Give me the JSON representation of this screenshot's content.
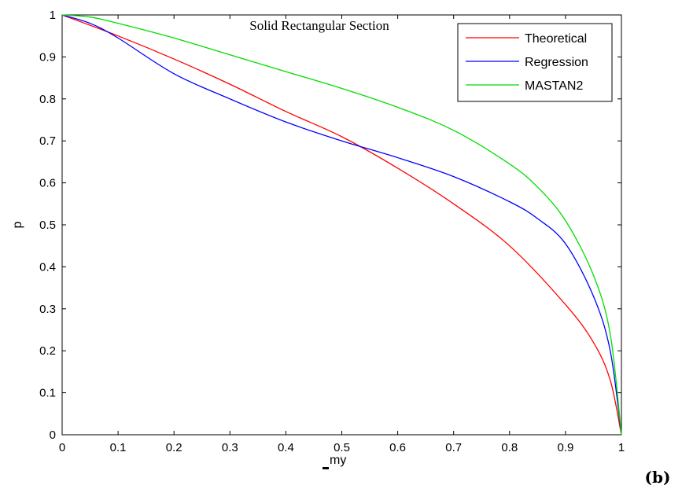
{
  "chart_data": {
    "type": "line",
    "title": "Solid Rectangular Section",
    "xlabel": "my",
    "ylabel": "p",
    "panel_label": "(b)",
    "xlim": [
      0,
      1
    ],
    "ylim": [
      0,
      1
    ],
    "xticks": [
      "0",
      "0.1",
      "0.2",
      "0.3",
      "0.4",
      "0.5",
      "0.6",
      "0.7",
      "0.8",
      "0.9",
      "1"
    ],
    "yticks": [
      "0",
      "0.1",
      "0.2",
      "0.3",
      "0.4",
      "0.5",
      "0.6",
      "0.7",
      "0.8",
      "0.9",
      "1"
    ],
    "grid": false,
    "legend_position": "top-right",
    "series": [
      {
        "name": "Theoretical",
        "color": "#ff0000",
        "x": [
          0,
          0.1,
          0.2,
          0.3,
          0.4,
          0.5,
          0.6,
          0.7,
          0.8,
          0.9,
          0.95,
          0.98,
          1.0
        ],
        "y": [
          1.0,
          0.95,
          0.895,
          0.835,
          0.77,
          0.71,
          0.635,
          0.55,
          0.45,
          0.31,
          0.22,
          0.13,
          0.0
        ]
      },
      {
        "name": "Regression",
        "color": "#0000ff",
        "x": [
          0,
          0.05,
          0.1,
          0.2,
          0.3,
          0.4,
          0.5,
          0.6,
          0.7,
          0.8,
          0.85,
          0.9,
          0.95,
          0.98,
          1.0
        ],
        "y": [
          1.0,
          0.98,
          0.945,
          0.86,
          0.8,
          0.745,
          0.7,
          0.66,
          0.615,
          0.555,
          0.515,
          0.455,
          0.33,
          0.2,
          0.0
        ]
      },
      {
        "name": "MASTAN2",
        "color": "#00dd00",
        "x": [
          0,
          0.05,
          0.1,
          0.2,
          0.3,
          0.4,
          0.5,
          0.6,
          0.7,
          0.8,
          0.85,
          0.9,
          0.95,
          0.98,
          1.0
        ],
        "y": [
          1.0,
          0.995,
          0.98,
          0.945,
          0.905,
          0.865,
          0.825,
          0.78,
          0.725,
          0.645,
          0.59,
          0.51,
          0.38,
          0.24,
          0.0
        ]
      }
    ]
  }
}
